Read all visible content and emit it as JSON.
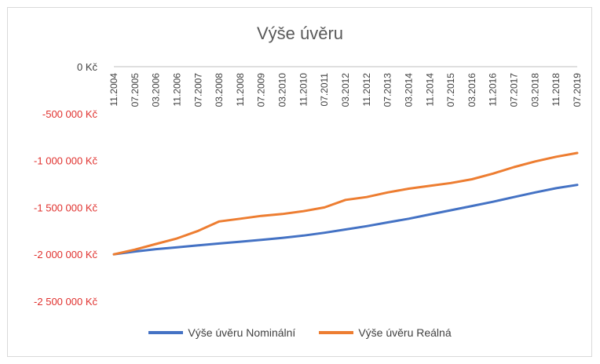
{
  "chart_data": {
    "type": "line",
    "title": "Výše úvěru",
    "xlabel": "",
    "ylabel": "",
    "ylim": [
      -2500000,
      0
    ],
    "y_ticks": [
      0,
      -500000,
      -1000000,
      -1500000,
      -2000000,
      -2500000
    ],
    "y_tick_labels": [
      "0 Kč",
      "-500 000 Kč",
      "-1 000 000 Kč",
      "-1 500 000 Kč",
      "-2 000 000 Kč",
      "-2 500 000 Kč"
    ],
    "y_tick_colors": [
      "#404040",
      "#e0312e",
      "#e0312e",
      "#e0312e",
      "#e0312e",
      "#e0312e"
    ],
    "x_tick_labels": [
      "11.2004",
      "07.2005",
      "03.2006",
      "11.2006",
      "07.2007",
      "03.2008",
      "11.2008",
      "07.2009",
      "03.2010",
      "11.2010",
      "07.2011",
      "03.2012",
      "11.2012",
      "07.2013",
      "03.2014",
      "11.2014",
      "07.2015",
      "03.2016",
      "11.2016",
      "07.2017",
      "03.2018",
      "11.2018",
      "07.2019"
    ],
    "x_label_position": "top",
    "grid": false,
    "legend": "bottom",
    "series": [
      {
        "name": "Výše úvěru Nominální",
        "color": "#4472c4",
        "values": [
          -2000000,
          -1970000,
          -1945000,
          -1925000,
          -1905000,
          -1885000,
          -1865000,
          -1845000,
          -1825000,
          -1800000,
          -1770000,
          -1735000,
          -1700000,
          -1660000,
          -1620000,
          -1575000,
          -1530000,
          -1485000,
          -1440000,
          -1390000,
          -1340000,
          -1295000,
          -1260000
        ]
      },
      {
        "name": "Výše úvěru Reálná",
        "color": "#ed7d31",
        "values": [
          -2000000,
          -1950000,
          -1890000,
          -1830000,
          -1750000,
          -1650000,
          -1620000,
          -1590000,
          -1570000,
          -1540000,
          -1500000,
          -1420000,
          -1390000,
          -1340000,
          -1300000,
          -1270000,
          -1240000,
          -1200000,
          -1140000,
          -1070000,
          -1010000,
          -960000,
          -920000
        ]
      }
    ]
  }
}
